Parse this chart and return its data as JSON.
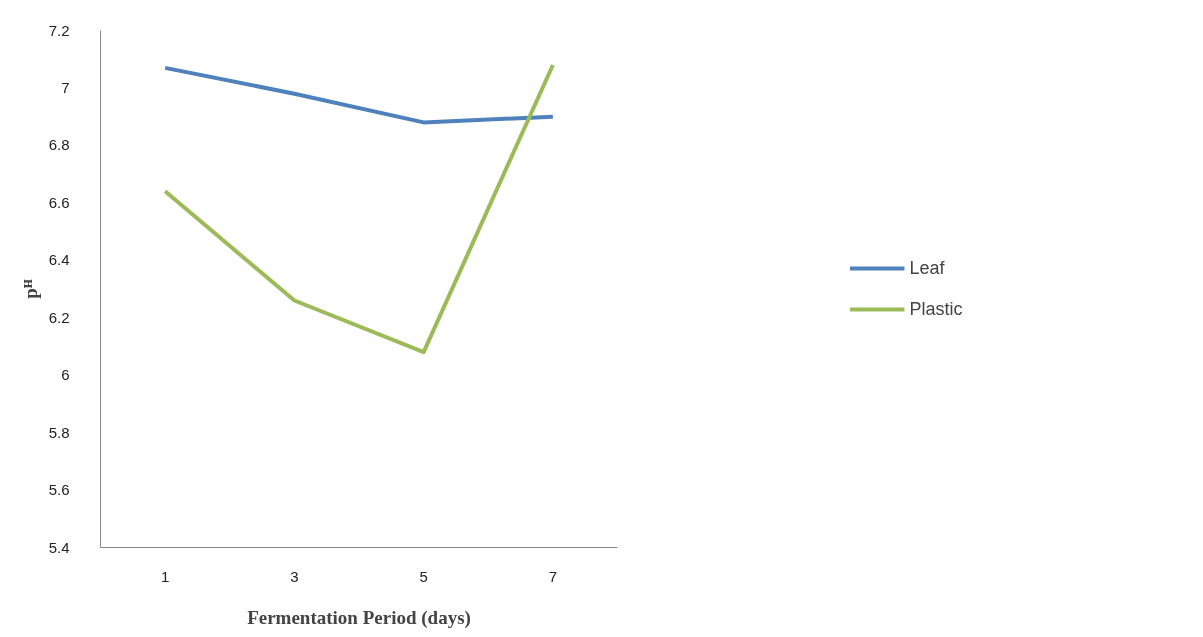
{
  "chart_data": {
    "type": "line",
    "xlabel": "Fermentation Period (days)",
    "ylabel": "pᴴ",
    "categories": [
      "1",
      "3",
      "5",
      "7"
    ],
    "series": [
      {
        "name": "Leaf",
        "color": "#4f81bd",
        "values": [
          7.07,
          6.98,
          6.88,
          6.9
        ]
      },
      {
        "name": "Plastic",
        "color": "#9bbb59",
        "values": [
          6.64,
          6.26,
          6.08,
          7.08
        ]
      }
    ],
    "ylim": [
      5.4,
      7.2
    ],
    "yticks": [
      5.4,
      5.6,
      5.8,
      6,
      6.2,
      6.4,
      6.6,
      6.8,
      7,
      7.2
    ],
    "grid": false,
    "legend": "right",
    "marker": "none",
    "line_style": "solid"
  }
}
